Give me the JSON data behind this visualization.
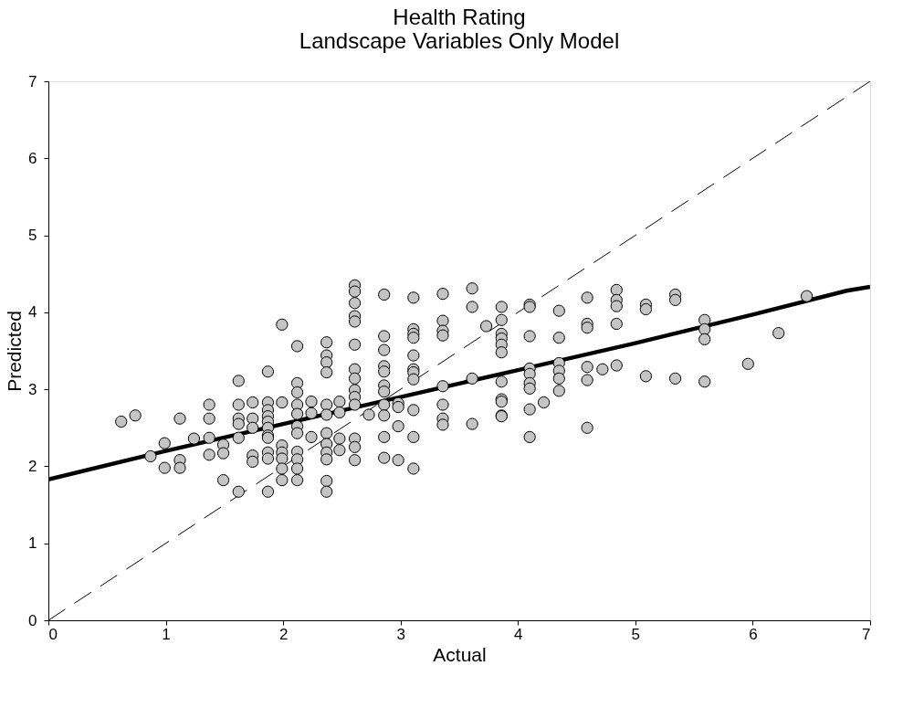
{
  "chart_data": {
    "type": "scatter",
    "title": "Health Rating",
    "subtitle": "Landscape Variables Only Model",
    "xlabel": "Actual",
    "ylabel": "Predicted",
    "xlim": [
      0,
      7
    ],
    "ylim": [
      0,
      7
    ],
    "xticks": [
      0,
      1,
      2,
      3,
      4,
      5,
      6,
      7
    ],
    "yticks": [
      0,
      1,
      2,
      3,
      4,
      5,
      6,
      7
    ],
    "grid": false,
    "series": [
      {
        "type": "line",
        "color": "#000000",
        "line_style": "dashed",
        "x": [
          0,
          7
        ],
        "values": [
          0,
          7
        ]
      },
      {
        "type": "line",
        "color": "#000000",
        "line_style": "solid",
        "x": [
          0,
          1,
          2,
          3,
          4,
          5,
          6,
          6.8,
          7
        ],
        "values": [
          1.83,
          2.2,
          2.55,
          2.9,
          3.25,
          3.6,
          3.97,
          4.28,
          4.33
        ]
      },
      {
        "color": "#c4c4c4",
        "marker": "circle",
        "x": [
          0.62,
          0.74,
          0.87,
          0.99,
          0.99,
          1.12,
          1.12,
          1.12,
          1.24,
          1.37,
          1.37,
          1.37,
          1.37,
          1.49,
          1.49,
          1.49,
          1.62,
          1.62,
          1.62,
          1.62,
          1.62,
          1.62,
          1.74,
          1.74,
          1.74,
          1.74,
          1.74,
          1.87,
          1.87,
          1.87,
          1.87,
          1.87,
          1.87,
          1.87,
          1.87,
          1.87,
          1.87,
          1.87,
          1.99,
          1.99,
          1.99,
          1.99,
          1.99,
          1.99,
          1.99,
          2.12,
          2.12,
          2.12,
          2.12,
          2.12,
          2.12,
          2.12,
          2.12,
          2.12,
          2.12,
          2.12,
          2.24,
          2.24,
          2.24,
          2.37,
          2.37,
          2.37,
          2.37,
          2.37,
          2.37,
          2.37,
          2.37,
          2.37,
          2.37,
          2.37,
          2.37,
          2.48,
          2.48,
          2.48,
          2.48,
          2.61,
          2.61,
          2.61,
          2.61,
          2.61,
          2.61,
          2.61,
          2.61,
          2.61,
          2.61,
          2.61,
          2.61,
          2.61,
          2.61,
          2.73,
          2.86,
          2.86,
          2.86,
          2.86,
          2.86,
          2.86,
          2.86,
          2.86,
          2.86,
          2.86,
          2.86,
          2.98,
          2.98,
          2.98,
          2.98,
          3.11,
          3.11,
          3.11,
          3.11,
          3.11,
          3.11,
          3.11,
          3.11,
          3.11,
          3.11,
          3.11,
          3.36,
          3.36,
          3.36,
          3.36,
          3.36,
          3.36,
          3.36,
          3.36,
          3.61,
          3.61,
          3.61,
          3.61,
          3.73,
          3.86,
          3.86,
          3.86,
          3.86,
          3.86,
          3.86,
          3.86,
          3.86,
          3.86,
          3.86,
          3.86,
          4.1,
          4.1,
          4.1,
          4.1,
          4.1,
          4.1,
          4.1,
          4.1,
          4.1,
          4.22,
          4.35,
          4.35,
          4.35,
          4.35,
          4.35,
          4.35,
          4.59,
          4.59,
          4.59,
          4.59,
          4.59,
          4.59,
          4.72,
          4.84,
          4.84,
          4.84,
          4.84,
          4.84,
          5.09,
          5.09,
          5.09,
          5.34,
          5.34,
          5.34,
          5.59,
          5.59,
          5.59,
          5.59,
          5.96,
          6.22,
          6.46
        ],
        "values": [
          2.58,
          2.66,
          2.13,
          2.3,
          1.98,
          2.62,
          2.08,
          1.98,
          2.36,
          2.8,
          2.62,
          2.37,
          2.15,
          2.28,
          2.17,
          1.82,
          3.11,
          2.8,
          2.62,
          2.55,
          2.37,
          1.67,
          2.83,
          2.62,
          2.5,
          2.14,
          2.06,
          3.23,
          2.83,
          2.73,
          2.65,
          2.58,
          2.5,
          2.4,
          2.37,
          2.18,
          2.1,
          1.67,
          3.84,
          2.83,
          2.27,
          2.18,
          2.1,
          1.97,
          1.82,
          3.56,
          3.08,
          2.96,
          2.8,
          2.68,
          2.52,
          2.43,
          2.19,
          2.09,
          1.97,
          1.82,
          2.84,
          2.69,
          2.38,
          3.61,
          3.44,
          3.35,
          3.22,
          2.8,
          2.67,
          2.43,
          2.29,
          2.18,
          2.09,
          1.81,
          1.67,
          2.84,
          2.7,
          2.36,
          2.21,
          4.35,
          4.27,
          4.12,
          3.95,
          3.88,
          3.58,
          3.26,
          3.14,
          2.99,
          2.9,
          2.8,
          2.36,
          2.25,
          2.08,
          2.67,
          4.23,
          3.69,
          3.51,
          3.3,
          3.23,
          3.05,
          2.97,
          2.8,
          2.66,
          2.38,
          2.11,
          2.82,
          2.77,
          2.52,
          2.08,
          4.19,
          3.78,
          3.72,
          3.67,
          3.44,
          3.26,
          3.22,
          3.13,
          2.73,
          2.38,
          1.97,
          4.24,
          3.89,
          3.76,
          3.7,
          3.04,
          2.8,
          2.62,
          2.54,
          4.31,
          4.07,
          3.14,
          2.55,
          3.82,
          4.07,
          3.9,
          3.72,
          3.66,
          3.58,
          3.48,
          3.1,
          2.87,
          2.84,
          2.66,
          2.65,
          4.1,
          4.07,
          3.69,
          3.27,
          3.2,
          3.08,
          3.01,
          2.74,
          2.38,
          2.83,
          4.02,
          3.67,
          3.34,
          3.24,
          3.14,
          2.98,
          4.19,
          3.85,
          3.8,
          3.29,
          3.12,
          2.5,
          3.26,
          4.29,
          4.16,
          4.08,
          3.85,
          3.31,
          4.1,
          4.04,
          3.17,
          4.23,
          4.16,
          3.14,
          3.9,
          3.78,
          3.65,
          3.1,
          3.33,
          3.73,
          4.21
        ]
      }
    ]
  }
}
